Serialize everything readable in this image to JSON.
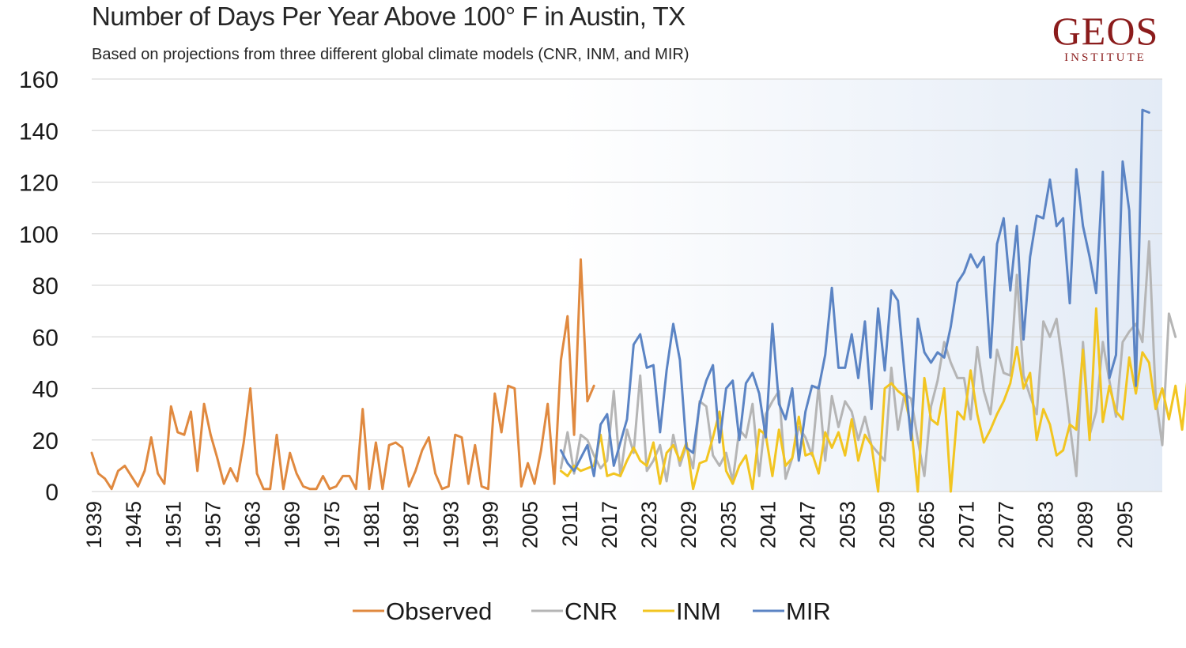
{
  "logo": {
    "main": "GEOS",
    "sub": "INSTITUTE"
  },
  "chart_data": {
    "type": "line",
    "title": "Number of Days Per Year Above 100° F in Austin, TX",
    "subtitle": "Based on projections from three different global climate models (CNR, INM, and MIR)",
    "xlabel": "",
    "ylabel": "",
    "xlim": [
      1939,
      2101
    ],
    "ylim": [
      0,
      160
    ],
    "yticks": [
      0,
      20,
      40,
      60,
      80,
      100,
      120,
      140,
      160
    ],
    "xticks": [
      1939,
      1945,
      1951,
      1957,
      1963,
      1969,
      1975,
      1981,
      1987,
      1993,
      1999,
      2005,
      2011,
      2017,
      2023,
      2029,
      2035,
      2041,
      2047,
      2053,
      2059,
      2065,
      2071,
      2077,
      2083,
      2089,
      2095
    ],
    "grid": true,
    "legend_position": "bottom",
    "colors": {
      "Observed": "#e0893f",
      "CNR": "#b5b5b5",
      "INM": "#f2c521",
      "MIR": "#5b84c4",
      "projection_background": "#e3ebf6"
    },
    "series": [
      {
        "name": "Observed",
        "x_start": 1939,
        "values": [
          15,
          7,
          5,
          1,
          8,
          10,
          6,
          2,
          8,
          21,
          7,
          3,
          33,
          23,
          22,
          31,
          8,
          34,
          22,
          13,
          3,
          9,
          4,
          19,
          40,
          7,
          1,
          1,
          22,
          1,
          15,
          7,
          2,
          1,
          1,
          6,
          1,
          2,
          6,
          6,
          1,
          32,
          1,
          19,
          1,
          18,
          19,
          17,
          2,
          8,
          16,
          21,
          7,
          1,
          2,
          22,
          21,
          3,
          18,
          2,
          1,
          38,
          23,
          41,
          40,
          2,
          11,
          3,
          16,
          34,
          3,
          51,
          68,
          22,
          90,
          35,
          41
        ]
      },
      {
        "name": "CNR",
        "x_start": 2010,
        "values": [
          9,
          23,
          7,
          22,
          20,
          14,
          9,
          12,
          39,
          6,
          24,
          15,
          45,
          8,
          12,
          18,
          4,
          22,
          10,
          18,
          9,
          35,
          33,
          14,
          10,
          15,
          4,
          24,
          21,
          34,
          6,
          30,
          35,
          39,
          5,
          13,
          25,
          21,
          14,
          41,
          12,
          37,
          25,
          35,
          31,
          20,
          29,
          18,
          15,
          12,
          48,
          24,
          38,
          36,
          20,
          6,
          33,
          43,
          58,
          50,
          44,
          44,
          28,
          56,
          39,
          30,
          55,
          46,
          45,
          84,
          45,
          37,
          30,
          66,
          60,
          67,
          48,
          26,
          6,
          58,
          22,
          31,
          58,
          43,
          29,
          58,
          62,
          65,
          58,
          97,
          37,
          18,
          69,
          60
        ]
      },
      {
        "name": "INM",
        "x_start": 2010,
        "values": [
          8,
          6,
          10,
          8,
          9,
          10,
          22,
          6,
          7,
          6,
          12,
          17,
          12,
          10,
          19,
          3,
          15,
          18,
          12,
          19,
          1,
          11,
          12,
          21,
          31,
          8,
          3,
          10,
          14,
          1,
          24,
          22,
          6,
          24,
          10,
          13,
          29,
          14,
          15,
          7,
          23,
          17,
          23,
          14,
          28,
          12,
          22,
          18,
          0,
          40,
          42,
          39,
          37,
          25,
          0,
          44,
          28,
          26,
          40,
          0,
          31,
          28,
          47,
          30,
          19,
          24,
          30,
          35,
          42,
          56,
          40,
          46,
          20,
          32,
          26,
          14,
          16,
          26,
          24,
          55,
          20,
          71,
          27,
          41,
          31,
          28,
          52,
          38,
          54,
          50,
          32,
          40,
          28,
          41,
          24,
          48,
          22
        ]
      },
      {
        "name": "MIR",
        "x_start": 2010,
        "values": [
          16,
          11,
          8,
          13,
          18,
          6,
          26,
          30,
          10,
          19,
          28,
          57,
          61,
          48,
          49,
          23,
          47,
          65,
          51,
          17,
          15,
          34,
          43,
          49,
          19,
          40,
          43,
          20,
          42,
          46,
          38,
          21,
          65,
          34,
          28,
          40,
          12,
          31,
          41,
          40,
          53,
          79,
          48,
          48,
          61,
          44,
          66,
          32,
          71,
          47,
          78,
          74,
          46,
          20,
          67,
          54,
          50,
          54,
          52,
          64,
          81,
          85,
          92,
          87,
          91,
          52,
          96,
          106,
          78,
          103,
          59,
          91,
          107,
          106,
          121,
          103,
          106,
          73,
          125,
          103,
          91,
          77,
          124,
          44,
          53,
          128,
          109,
          41,
          148,
          147
        ]
      }
    ]
  }
}
